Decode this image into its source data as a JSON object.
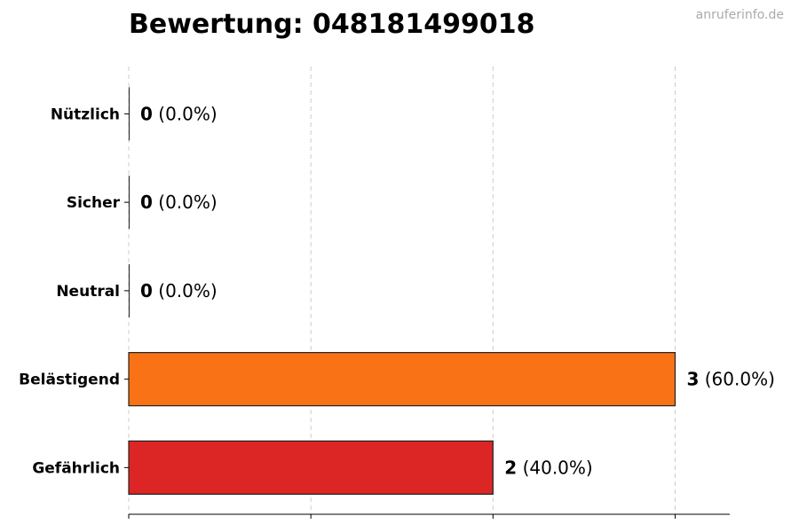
{
  "watermark": "anruferinfo.de",
  "chart_data": {
    "type": "bar",
    "orientation": "horizontal",
    "title": "Bewertung: 048181499018",
    "categories": [
      "Nützlich",
      "Sicher",
      "Neutral",
      "Belästigend",
      "Gefährlich"
    ],
    "values": [
      0,
      0,
      0,
      3,
      2
    ],
    "percent_labels": [
      "(0.0%)",
      "(0.0%)",
      "(0.0%)",
      "(60.0%)",
      "(40.0%)"
    ],
    "colors": [
      "#888888",
      "#888888",
      "#888888",
      "#f97316",
      "#dc2626"
    ],
    "xlim": [
      0,
      3.3
    ],
    "grid": true,
    "xlabel": "",
    "ylabel": ""
  }
}
